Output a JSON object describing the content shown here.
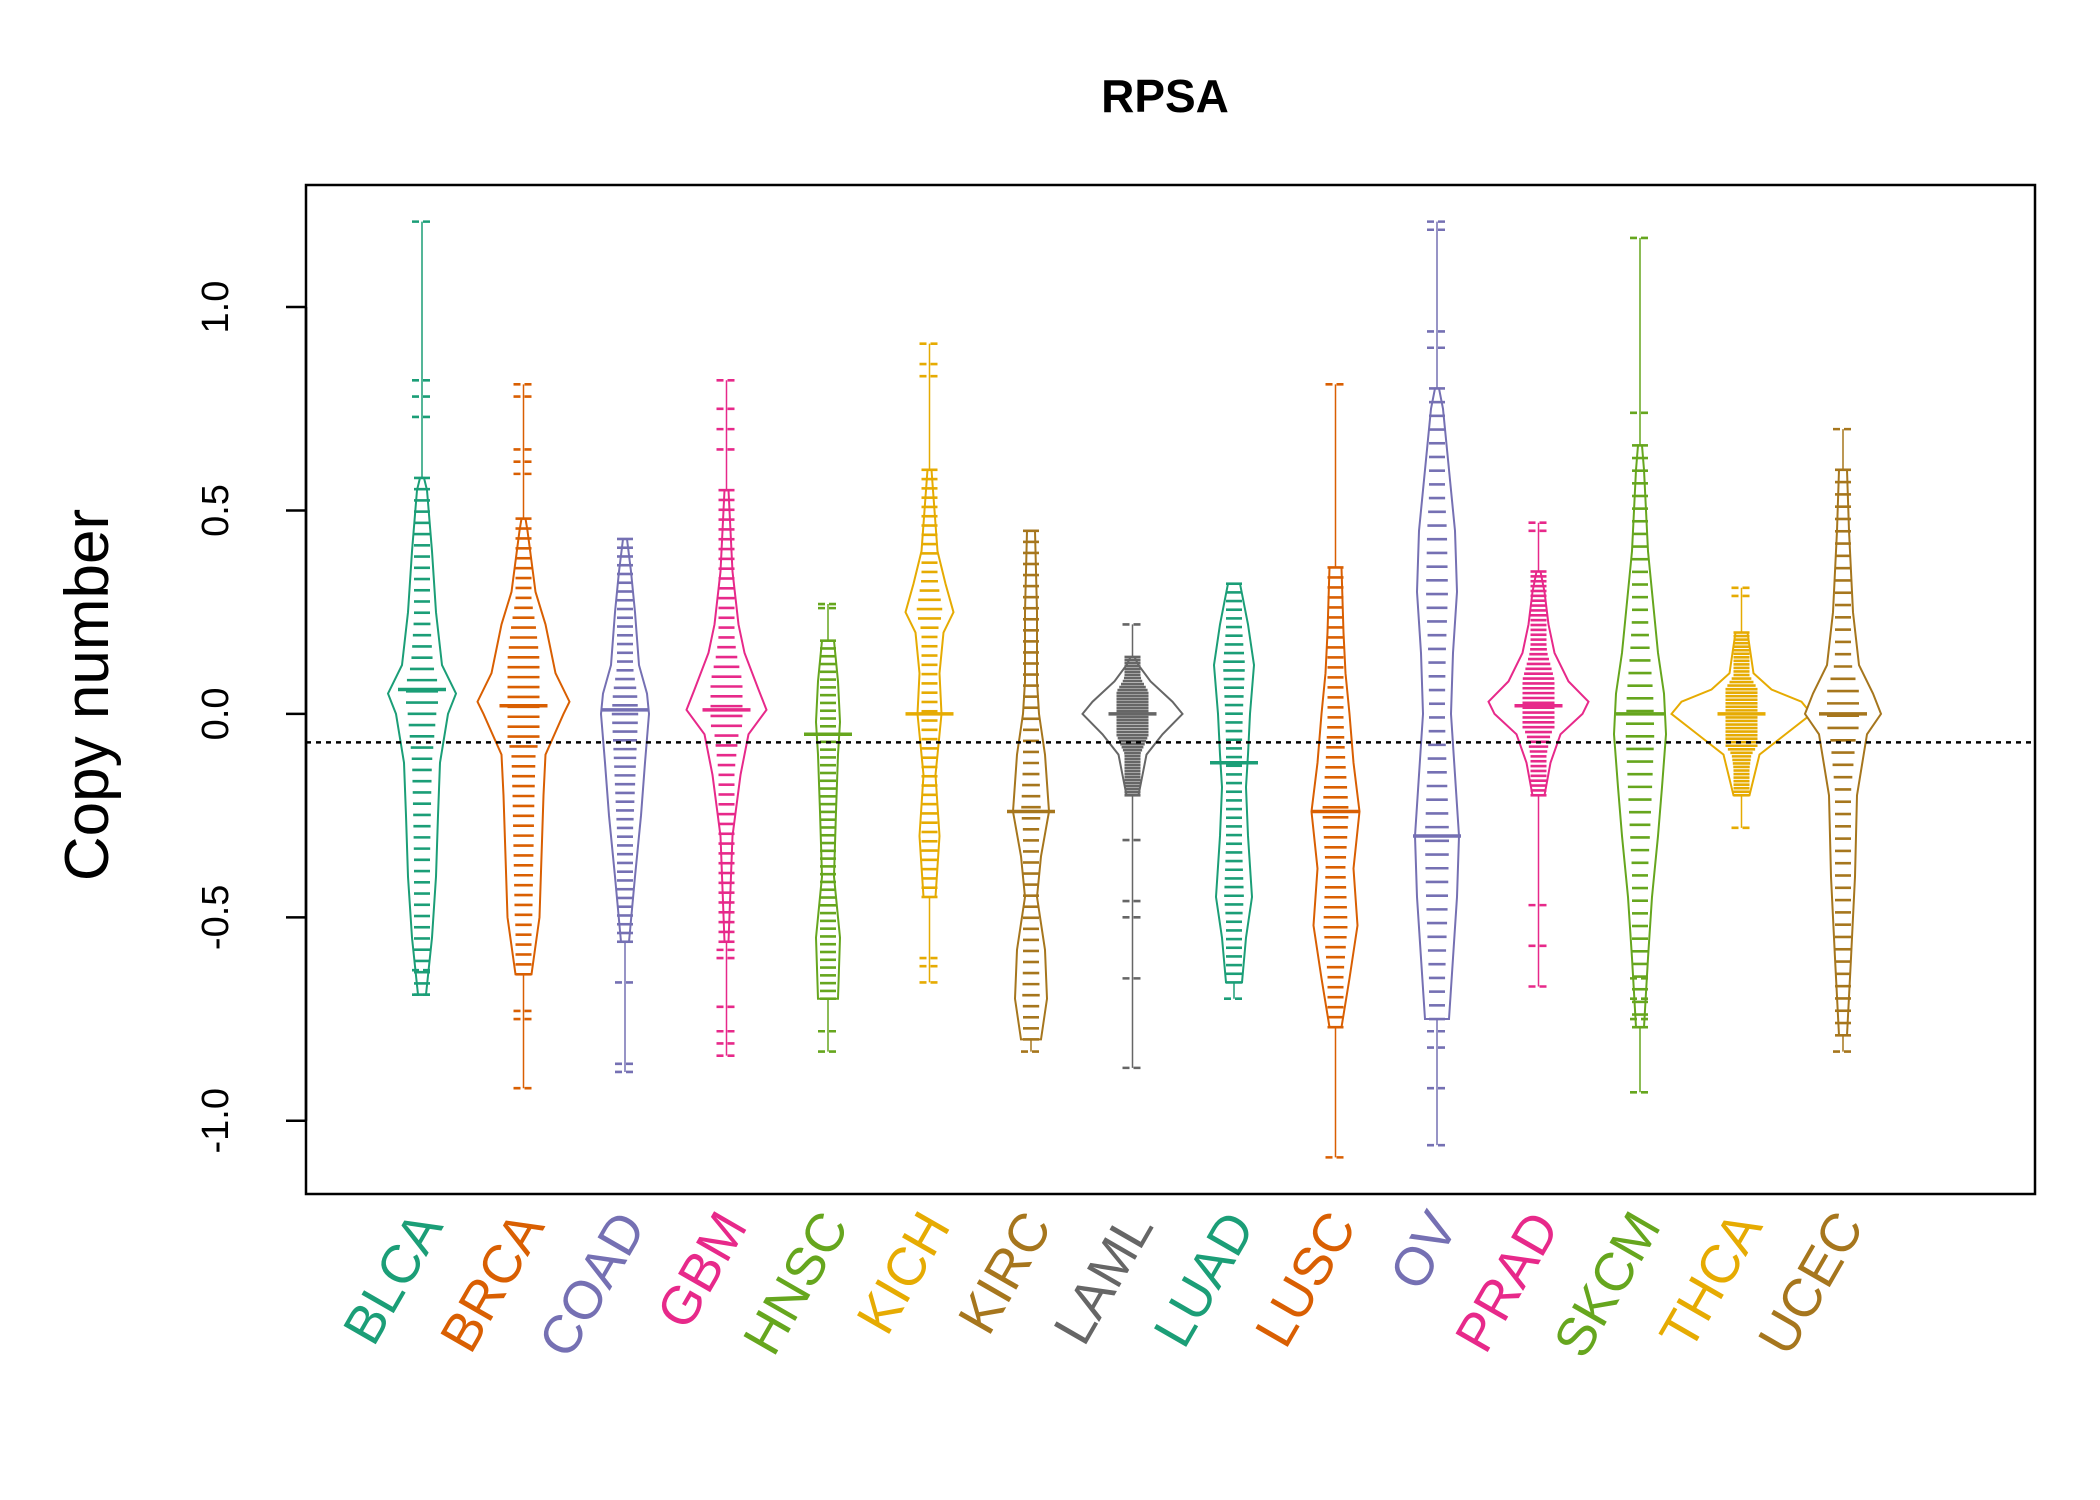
{
  "chart_data": {
    "type": "beanplot",
    "title": "RPSA",
    "ylabel": "Copy number",
    "xlabel": "",
    "ylim": [
      -1.18,
      1.3
    ],
    "yticks": [
      {
        "value": 1.0,
        "label": "1.0"
      },
      {
        "value": 0.5,
        "label": "0.5"
      },
      {
        "value": 0.0,
        "label": "0.0"
      },
      {
        "value": -0.5,
        "label": "-0.5"
      },
      {
        "value": -1.0,
        "label": "-1.0"
      }
    ],
    "reference_line": -0.07,
    "grid": false,
    "legend": "none",
    "categories": [
      {
        "name": "BLCA",
        "color": "#1b9e77",
        "min": -0.69,
        "max": 1.21,
        "mean": 0.06,
        "outliers": [
          1.21,
          0.82,
          0.78,
          0.73,
          -0.63,
          -0.69
        ],
        "density": [
          [
            -0.69,
            4
          ],
          [
            -0.55,
            10
          ],
          [
            -0.4,
            14
          ],
          [
            -0.25,
            16
          ],
          [
            -0.12,
            18
          ],
          [
            0.0,
            26
          ],
          [
            0.05,
            34
          ],
          [
            0.12,
            20
          ],
          [
            0.25,
            14
          ],
          [
            0.4,
            10
          ],
          [
            0.55,
            5
          ],
          [
            0.58,
            2
          ]
        ]
      },
      {
        "name": "BRCA",
        "color": "#d95f02",
        "min": -0.92,
        "max": 0.81,
        "mean": 0.02,
        "outliers": [
          0.81,
          0.78,
          0.65,
          0.62,
          0.59,
          -0.73,
          -0.75,
          -0.92
        ],
        "density": [
          [
            -0.64,
            8
          ],
          [
            -0.5,
            16
          ],
          [
            -0.35,
            18
          ],
          [
            -0.2,
            20
          ],
          [
            -0.1,
            22
          ],
          [
            0.0,
            40
          ],
          [
            0.03,
            46
          ],
          [
            0.1,
            32
          ],
          [
            0.22,
            22
          ],
          [
            0.3,
            12
          ],
          [
            0.45,
            4
          ],
          [
            0.48,
            2
          ]
        ]
      },
      {
        "name": "COAD",
        "color": "#7570b3",
        "min": -0.88,
        "max": 0.43,
        "mean": 0.01,
        "outliers": [
          -0.66,
          -0.86,
          -0.88
        ],
        "density": [
          [
            -0.56,
            4
          ],
          [
            -0.4,
            10
          ],
          [
            -0.25,
            16
          ],
          [
            -0.12,
            20
          ],
          [
            0.0,
            24
          ],
          [
            0.05,
            22
          ],
          [
            0.12,
            14
          ],
          [
            0.25,
            10
          ],
          [
            0.35,
            6
          ],
          [
            0.43,
            2
          ]
        ]
      },
      {
        "name": "GBM",
        "color": "#e7298a",
        "min": -0.84,
        "max": 0.82,
        "mean": 0.01,
        "outliers": [
          0.82,
          0.75,
          0.7,
          0.65,
          -0.58,
          -0.6,
          -0.72,
          -0.78,
          -0.81,
          -0.84
        ],
        "density": [
          [
            -0.56,
            2
          ],
          [
            -0.3,
            6
          ],
          [
            -0.15,
            14
          ],
          [
            -0.05,
            22
          ],
          [
            0.01,
            40
          ],
          [
            0.06,
            32
          ],
          [
            0.15,
            18
          ],
          [
            0.22,
            12
          ],
          [
            0.35,
            6
          ],
          [
            0.55,
            2
          ]
        ]
      },
      {
        "name": "HNSC",
        "color": "#66a61e",
        "min": -0.83,
        "max": 0.27,
        "mean": -0.05,
        "outliers": [
          0.27,
          0.26,
          -0.78,
          -0.83
        ],
        "density": [
          [
            -0.7,
            10
          ],
          [
            -0.55,
            12
          ],
          [
            -0.4,
            6
          ],
          [
            -0.24,
            8
          ],
          [
            -0.1,
            10
          ],
          [
            -0.02,
            12
          ],
          [
            0.08,
            10
          ],
          [
            0.18,
            6
          ]
        ]
      },
      {
        "name": "KICH",
        "color": "#e6ab02",
        "min": -0.66,
        "max": 0.91,
        "mean": 0.0,
        "outliers": [
          0.91,
          0.86,
          0.83,
          -0.6,
          -0.62,
          -0.66
        ],
        "density": [
          [
            -0.45,
            6
          ],
          [
            -0.3,
            10
          ],
          [
            -0.15,
            6
          ],
          [
            0.0,
            12
          ],
          [
            0.1,
            10
          ],
          [
            0.2,
            14
          ],
          [
            0.25,
            24
          ],
          [
            0.32,
            16
          ],
          [
            0.4,
            8
          ],
          [
            0.6,
            2
          ]
        ]
      },
      {
        "name": "KIRC",
        "color": "#a6761d",
        "min": -0.83,
        "max": 0.45,
        "mean": -0.24,
        "outliers": [
          -0.83
        ],
        "density": [
          [
            -0.8,
            10
          ],
          [
            -0.7,
            16
          ],
          [
            -0.58,
            14
          ],
          [
            -0.45,
            6
          ],
          [
            -0.35,
            10
          ],
          [
            -0.24,
            18
          ],
          [
            -0.1,
            14
          ],
          [
            0.0,
            8
          ],
          [
            0.08,
            6
          ],
          [
            0.25,
            6
          ],
          [
            0.45,
            4
          ]
        ]
      },
      {
        "name": "LAML",
        "color": "#666666",
        "min": -0.87,
        "max": 0.22,
        "mean": 0.0,
        "outliers": [
          0.22,
          -0.31,
          -0.46,
          -0.5,
          -0.65,
          -0.87
        ],
        "density": [
          [
            -0.2,
            6
          ],
          [
            -0.1,
            14
          ],
          [
            -0.05,
            30
          ],
          [
            0.0,
            50
          ],
          [
            0.03,
            40
          ],
          [
            0.08,
            18
          ],
          [
            0.12,
            6
          ],
          [
            0.14,
            2
          ]
        ]
      },
      {
        "name": "LUAD",
        "color": "#1b9e77",
        "min": -0.7,
        "max": 0.32,
        "mean": -0.12,
        "outliers": [
          -0.7
        ],
        "density": [
          [
            -0.66,
            8
          ],
          [
            -0.55,
            12
          ],
          [
            -0.45,
            18
          ],
          [
            -0.3,
            14
          ],
          [
            -0.18,
            12
          ],
          [
            -0.1,
            14
          ],
          [
            0.0,
            16
          ],
          [
            0.12,
            20
          ],
          [
            0.22,
            14
          ],
          [
            0.32,
            6
          ]
        ]
      },
      {
        "name": "LUSC",
        "color": "#d95f02",
        "min": -1.09,
        "max": 0.81,
        "mean": -0.24,
        "outliers": [
          0.81,
          -1.09
        ],
        "density": [
          [
            -0.77,
            6
          ],
          [
            -0.65,
            14
          ],
          [
            -0.52,
            22
          ],
          [
            -0.38,
            18
          ],
          [
            -0.24,
            24
          ],
          [
            -0.12,
            18
          ],
          [
            0.0,
            14
          ],
          [
            0.1,
            10
          ],
          [
            0.2,
            8
          ],
          [
            0.36,
            6
          ]
        ]
      },
      {
        "name": "OV",
        "color": "#7570b3",
        "min": -1.06,
        "max": 1.21,
        "mean": -0.3,
        "outliers": [
          1.21,
          1.19,
          0.94,
          0.9,
          -0.78,
          -0.82,
          -0.92,
          -1.06
        ],
        "density": [
          [
            -0.75,
            12
          ],
          [
            -0.6,
            16
          ],
          [
            -0.45,
            20
          ],
          [
            -0.3,
            22
          ],
          [
            -0.15,
            18
          ],
          [
            0.0,
            14
          ],
          [
            0.15,
            16
          ],
          [
            0.3,
            20
          ],
          [
            0.45,
            18
          ],
          [
            0.6,
            12
          ],
          [
            0.75,
            6
          ],
          [
            0.8,
            2
          ]
        ]
      },
      {
        "name": "PRAD",
        "color": "#e7298a",
        "min": -0.67,
        "max": 0.47,
        "mean": 0.02,
        "outliers": [
          0.47,
          0.45,
          -0.47,
          -0.57,
          -0.67
        ],
        "density": [
          [
            -0.2,
            6
          ],
          [
            -0.12,
            12
          ],
          [
            -0.05,
            22
          ],
          [
            0.0,
            44
          ],
          [
            0.03,
            50
          ],
          [
            0.08,
            30
          ],
          [
            0.15,
            16
          ],
          [
            0.22,
            10
          ],
          [
            0.3,
            6
          ],
          [
            0.35,
            2
          ]
        ]
      },
      {
        "name": "SKCM",
        "color": "#66a61e",
        "min": -0.93,
        "max": 1.17,
        "mean": 0.0,
        "outliers": [
          1.17,
          0.74,
          -0.65,
          -0.7,
          -0.75,
          -0.93
        ],
        "density": [
          [
            -0.77,
            4
          ],
          [
            -0.6,
            8
          ],
          [
            -0.45,
            12
          ],
          [
            -0.3,
            18
          ],
          [
            -0.18,
            22
          ],
          [
            -0.05,
            26
          ],
          [
            0.05,
            24
          ],
          [
            0.15,
            18
          ],
          [
            0.25,
            14
          ],
          [
            0.4,
            8
          ],
          [
            0.6,
            4
          ],
          [
            0.66,
            2
          ]
        ]
      },
      {
        "name": "THCA",
        "color": "#e6ab02",
        "min": -0.28,
        "max": 0.31,
        "mean": 0.0,
        "outliers": [
          0.31,
          0.29,
          -0.28
        ],
        "density": [
          [
            -0.2,
            8
          ],
          [
            -0.1,
            18
          ],
          [
            -0.05,
            44
          ],
          [
            0.0,
            70
          ],
          [
            0.03,
            60
          ],
          [
            0.06,
            30
          ],
          [
            0.1,
            12
          ],
          [
            0.2,
            6
          ]
        ]
      },
      {
        "name": "UCEC",
        "color": "#a6761d",
        "min": -0.83,
        "max": 0.7,
        "mean": 0.0,
        "outliers": [
          0.7,
          -0.83
        ],
        "density": [
          [
            -0.79,
            4
          ],
          [
            -0.6,
            8
          ],
          [
            -0.4,
            12
          ],
          [
            -0.2,
            14
          ],
          [
            -0.05,
            24
          ],
          [
            0.0,
            38
          ],
          [
            0.05,
            30
          ],
          [
            0.12,
            16
          ],
          [
            0.25,
            10
          ],
          [
            0.45,
            6
          ],
          [
            0.6,
            4
          ]
        ]
      }
    ]
  }
}
